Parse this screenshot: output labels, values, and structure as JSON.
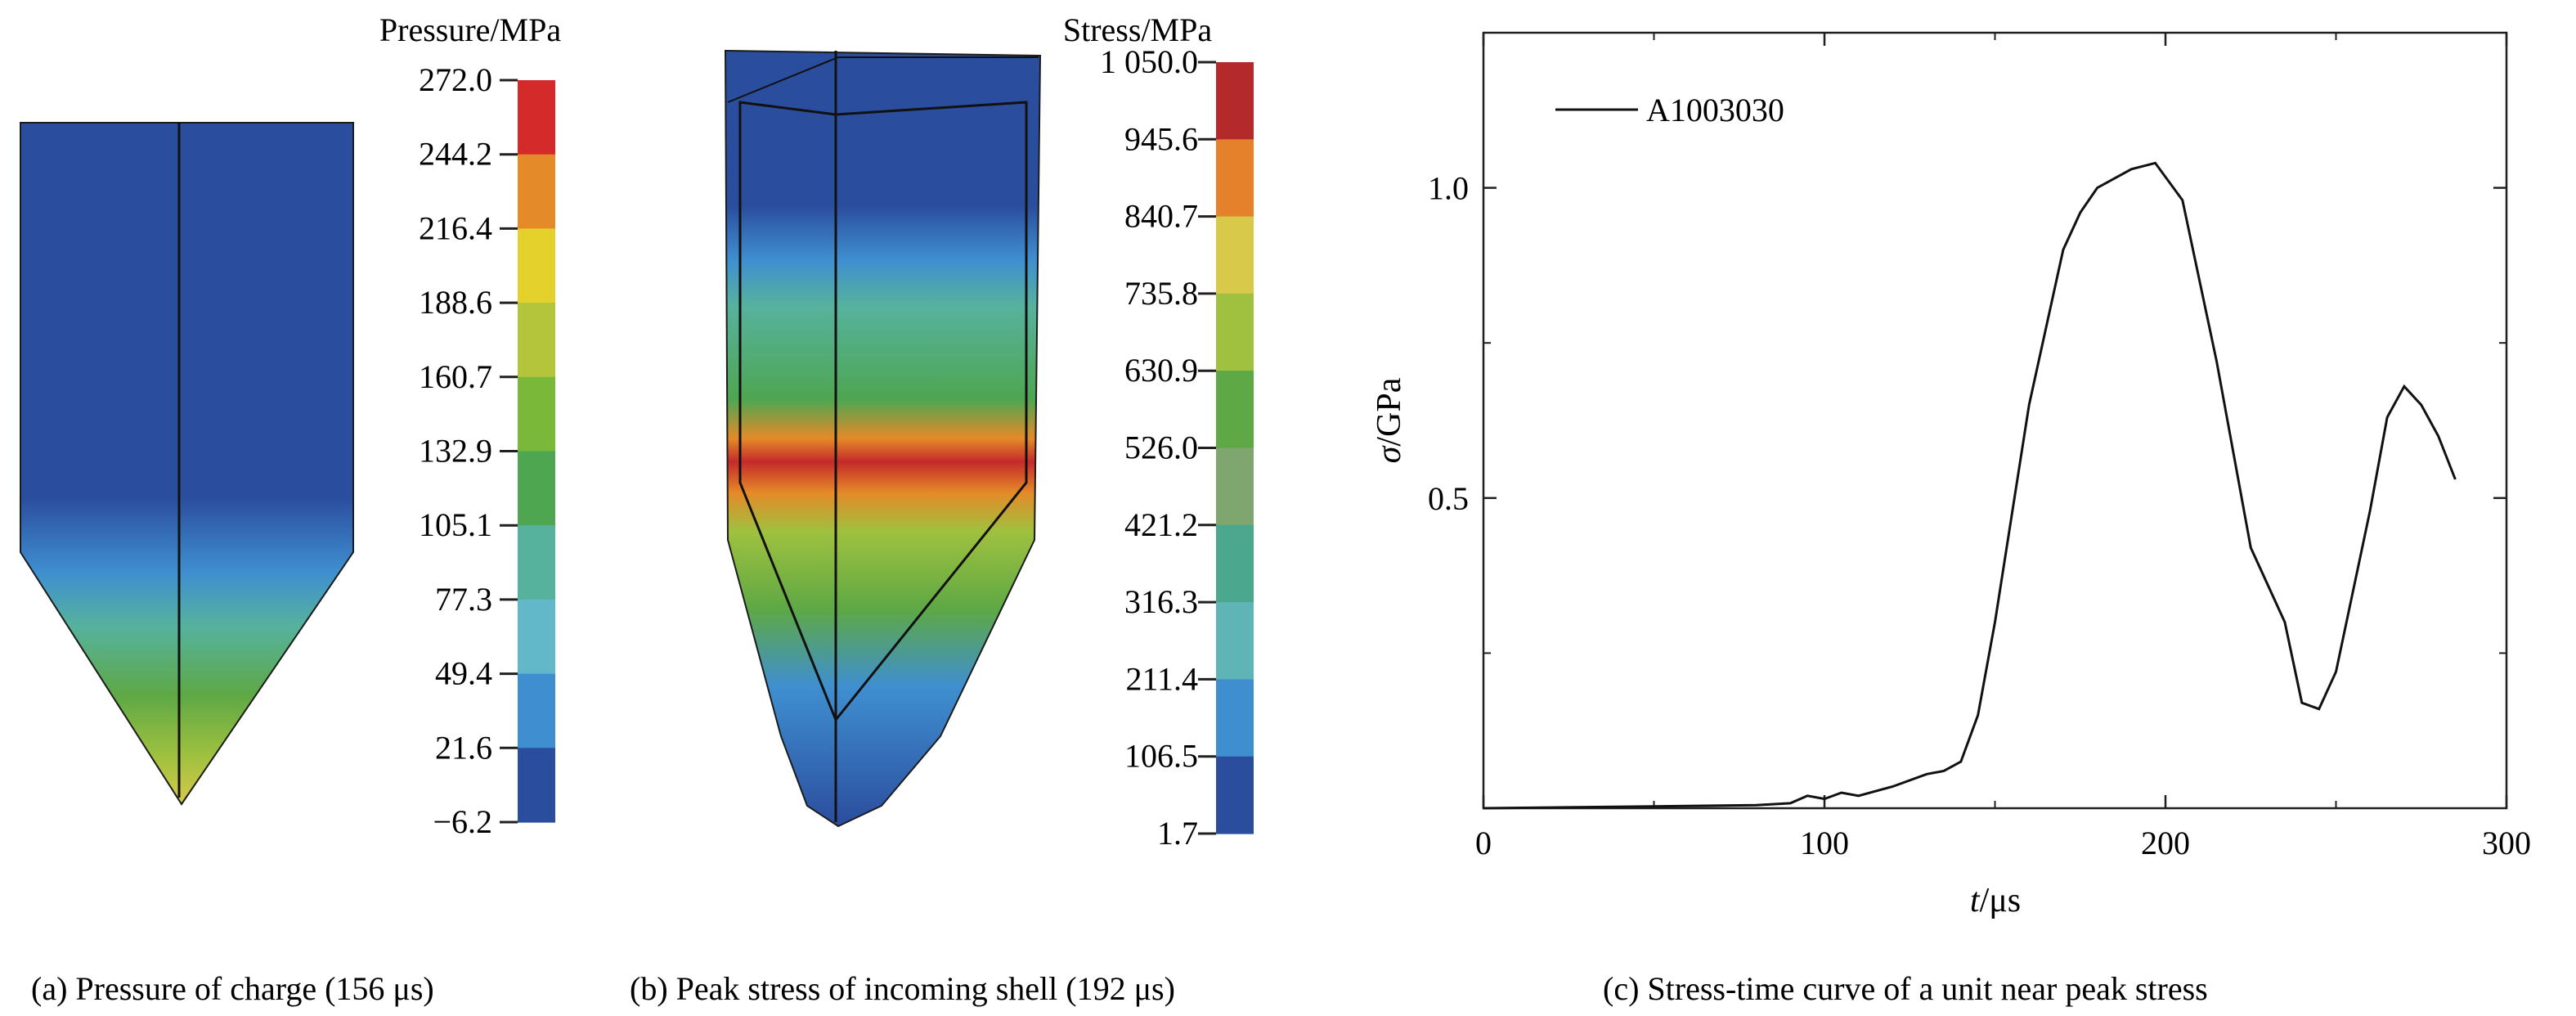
{
  "chart_data": [
    {
      "type": "heatmap",
      "title": "Pressure/MPa",
      "legend_ticks": [
        "272.0",
        "244.2",
        "216.4",
        "188.6",
        "160.7",
        "132.9",
        "105.1",
        "77.3",
        "49.4",
        "21.6",
        "−6.2"
      ],
      "legend_colors": [
        "#d42a2a",
        "#e58a28",
        "#e5d12b",
        "#b4c43b",
        "#7ab83a",
        "#4ea651",
        "#56b29c",
        "#62b8c8",
        "#3f8fd0",
        "#2b4d9e"
      ],
      "caption": "(a) Pressure of charge (156 μs)"
    },
    {
      "type": "heatmap",
      "title": "Stress/MPa",
      "legend_ticks": [
        "1 050.0",
        "945.6",
        "840.7",
        "735.8",
        "630.9",
        "526.0",
        "421.2",
        "316.3",
        "211.4",
        "106.5",
        "1.7"
      ],
      "legend_colors": [
        "#b42a2a",
        "#e5802b",
        "#d8c94a",
        "#9fc13f",
        "#5ea845",
        "#7ea66e",
        "#4ba88f",
        "#5fb4b6",
        "#3f8fd0",
        "#2b4d9e"
      ],
      "caption": "(b)  Peak stress of incoming shell (192 μs)"
    },
    {
      "type": "line",
      "title": "",
      "xlabel": "t/μs",
      "ylabel": "σ/GPa",
      "xlim": [
        0,
        300
      ],
      "ylim": [
        0,
        1.25
      ],
      "xticks": [
        0,
        100,
        200,
        300
      ],
      "xtick_labels": [
        "0",
        "100",
        "200",
        "300"
      ],
      "yticks": [
        0.5,
        1.0
      ],
      "ytick_labels": [
        "0.5",
        "1.0"
      ],
      "legend_position": "top-left",
      "series": [
        {
          "name": "A1003030",
          "x": [
            0,
            50,
            80,
            90,
            95,
            100,
            105,
            110,
            120,
            130,
            135,
            140,
            145,
            150,
            160,
            170,
            175,
            180,
            190,
            197,
            205,
            215,
            225,
            235,
            240,
            245,
            250,
            260,
            265,
            270,
            275,
            280,
            285
          ],
          "y": [
            0.0,
            0.003,
            0.005,
            0.008,
            0.02,
            0.015,
            0.025,
            0.02,
            0.035,
            0.055,
            0.06,
            0.075,
            0.15,
            0.3,
            0.65,
            0.9,
            0.96,
            1.0,
            1.03,
            1.04,
            0.98,
            0.72,
            0.42,
            0.3,
            0.17,
            0.16,
            0.22,
            0.48,
            0.63,
            0.68,
            0.65,
            0.6,
            0.53
          ]
        }
      ],
      "caption": "(c) Stress-time curve of a unit near peak stress"
    }
  ]
}
